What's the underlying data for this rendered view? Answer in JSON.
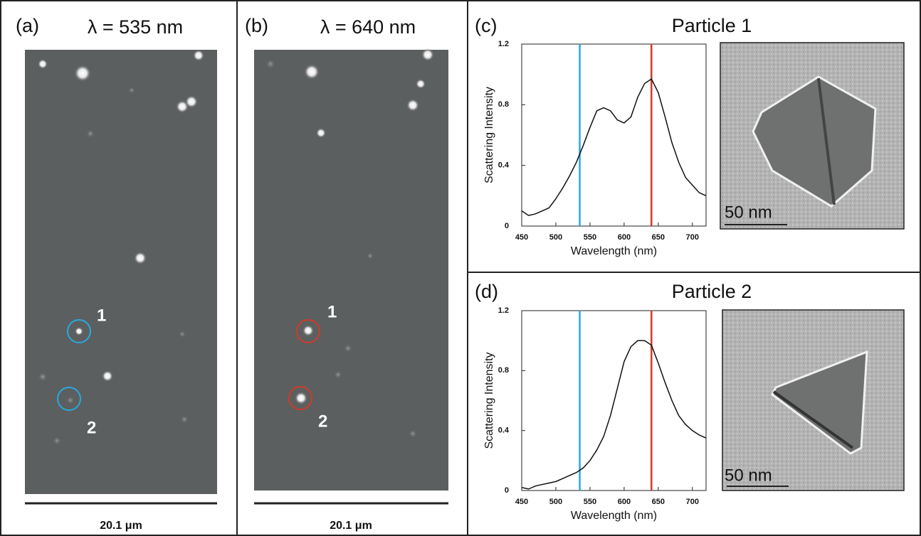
{
  "panels": [
    {
      "label": "(a)",
      "title": "λ = 535 nm",
      "scale_bar": "20.1 μm",
      "particles": [
        "1",
        "2"
      ]
    },
    {
      "label": "(b)",
      "title": "λ = 640 nm",
      "scale_bar": "20.1 μm",
      "particles": [
        "1",
        "2"
      ]
    }
  ],
  "chart_data": [
    {
      "type": "line",
      "label": "(c)",
      "title": "Particle 1",
      "x_label": "Wavelength (nm)",
      "y_label": "Scattering Intensity",
      "scale_bar": "50 nm",
      "x": [
        450,
        460,
        470,
        480,
        490,
        500,
        510,
        520,
        530,
        540,
        550,
        560,
        570,
        580,
        590,
        600,
        610,
        620,
        630,
        640,
        650,
        660,
        670,
        680,
        690,
        700,
        710,
        720
      ],
      "series": [
        {
          "color": "#111111",
          "values": [
            0.1,
            0.07,
            0.08,
            0.1,
            0.12,
            0.18,
            0.25,
            0.33,
            0.42,
            0.53,
            0.65,
            0.76,
            0.78,
            0.76,
            0.7,
            0.68,
            0.72,
            0.85,
            0.94,
            0.97,
            0.88,
            0.72,
            0.55,
            0.42,
            0.32,
            0.27,
            0.22,
            0.2
          ]
        }
      ],
      "markers": [
        {
          "x": 535,
          "color": "#29a8e0"
        },
        {
          "x": 640,
          "color": "#d03a2b"
        }
      ],
      "xlim": [
        450,
        720
      ],
      "xticks": [
        450,
        500,
        550,
        600,
        650,
        700
      ],
      "ylim": [
        0,
        1.2
      ],
      "yticks": [
        0,
        0.4,
        0.8,
        1.2
      ]
    },
    {
      "type": "line",
      "label": "(d)",
      "title": "Particle 2",
      "x_label": "Wavelength (nm)",
      "y_label": "Scattering Intensity",
      "scale_bar": "50 nm",
      "x": [
        450,
        460,
        470,
        480,
        490,
        500,
        510,
        520,
        530,
        540,
        550,
        560,
        570,
        580,
        590,
        600,
        610,
        620,
        630,
        640,
        650,
        660,
        670,
        680,
        690,
        700,
        710,
        720
      ],
      "series": [
        {
          "color": "#111111",
          "values": [
            0.02,
            0.01,
            0.03,
            0.04,
            0.05,
            0.06,
            0.08,
            0.1,
            0.12,
            0.15,
            0.2,
            0.27,
            0.36,
            0.5,
            0.68,
            0.86,
            0.96,
            1.0,
            1.0,
            0.97,
            0.85,
            0.72,
            0.6,
            0.5,
            0.44,
            0.4,
            0.37,
            0.35
          ]
        }
      ],
      "markers": [
        {
          "x": 535,
          "color": "#29a8e0"
        },
        {
          "x": 640,
          "color": "#d03a2b"
        }
      ],
      "xlim": [
        450,
        720
      ],
      "xticks": [
        450,
        500,
        550,
        600,
        650,
        700
      ],
      "ylim": [
        0,
        1.2
      ],
      "yticks": [
        0,
        0.4,
        0.8,
        1.2
      ]
    }
  ]
}
